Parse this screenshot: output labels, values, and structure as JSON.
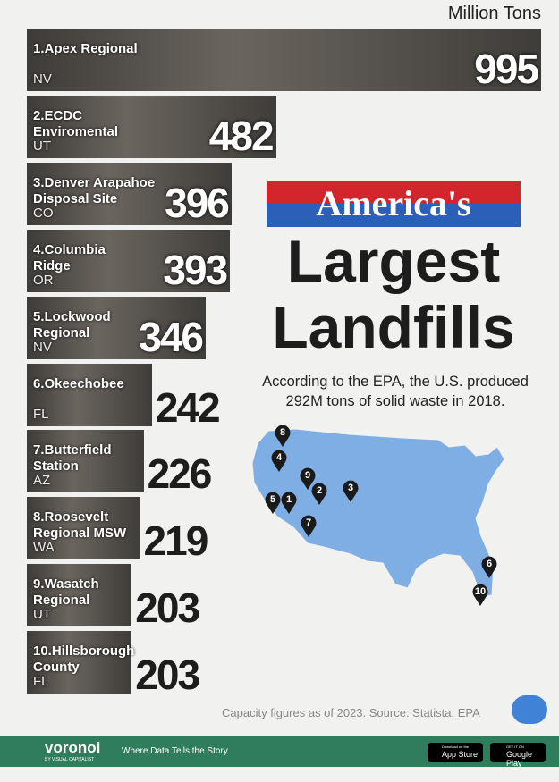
{
  "chart_data": {
    "type": "hbar",
    "unit": "Million Tons",
    "title_top": "America's",
    "title": "Largest Landfills",
    "subtitle": "According to the EPA, the U.S. produced 292M tons of solid waste in 2018.",
    "categories": [
      "1.Apex Regional",
      "2.ECDC Enviromental",
      "3.Denver Arapahoe Disposal Site",
      "4.Columbia Ridge",
      "5.Lockwood Regional",
      "6.Okeechobee",
      "7.Butterfield Station",
      "8.Roosevelt Regional MSW",
      "9.Wasatch Regional",
      "10.Hillsborough County"
    ],
    "states": [
      "NV",
      "UT",
      "CO",
      "OR",
      "NV",
      "FL",
      "AZ",
      "WA",
      "UT",
      "FL"
    ],
    "values": [
      995,
      482,
      396,
      393,
      346,
      242,
      226,
      219,
      203,
      203
    ],
    "xlim": [
      0,
      995
    ],
    "color": "#4d4b47",
    "map_markers": [
      "1",
      "2",
      "3",
      "4",
      "5",
      "6",
      "7",
      "8",
      "9",
      "10"
    ],
    "footnote": "Capacity figures as of 2023.  Source: Statista, EPA",
    "brand": "voronoi",
    "brand_sub": "BY VISUAL CAPITALIST",
    "tagline": "Where Data Tells the Story",
    "app_store_top": "Download on the",
    "app_store": "App Store",
    "google_play_top": "GET IT ON",
    "google_play": "Google Play"
  }
}
